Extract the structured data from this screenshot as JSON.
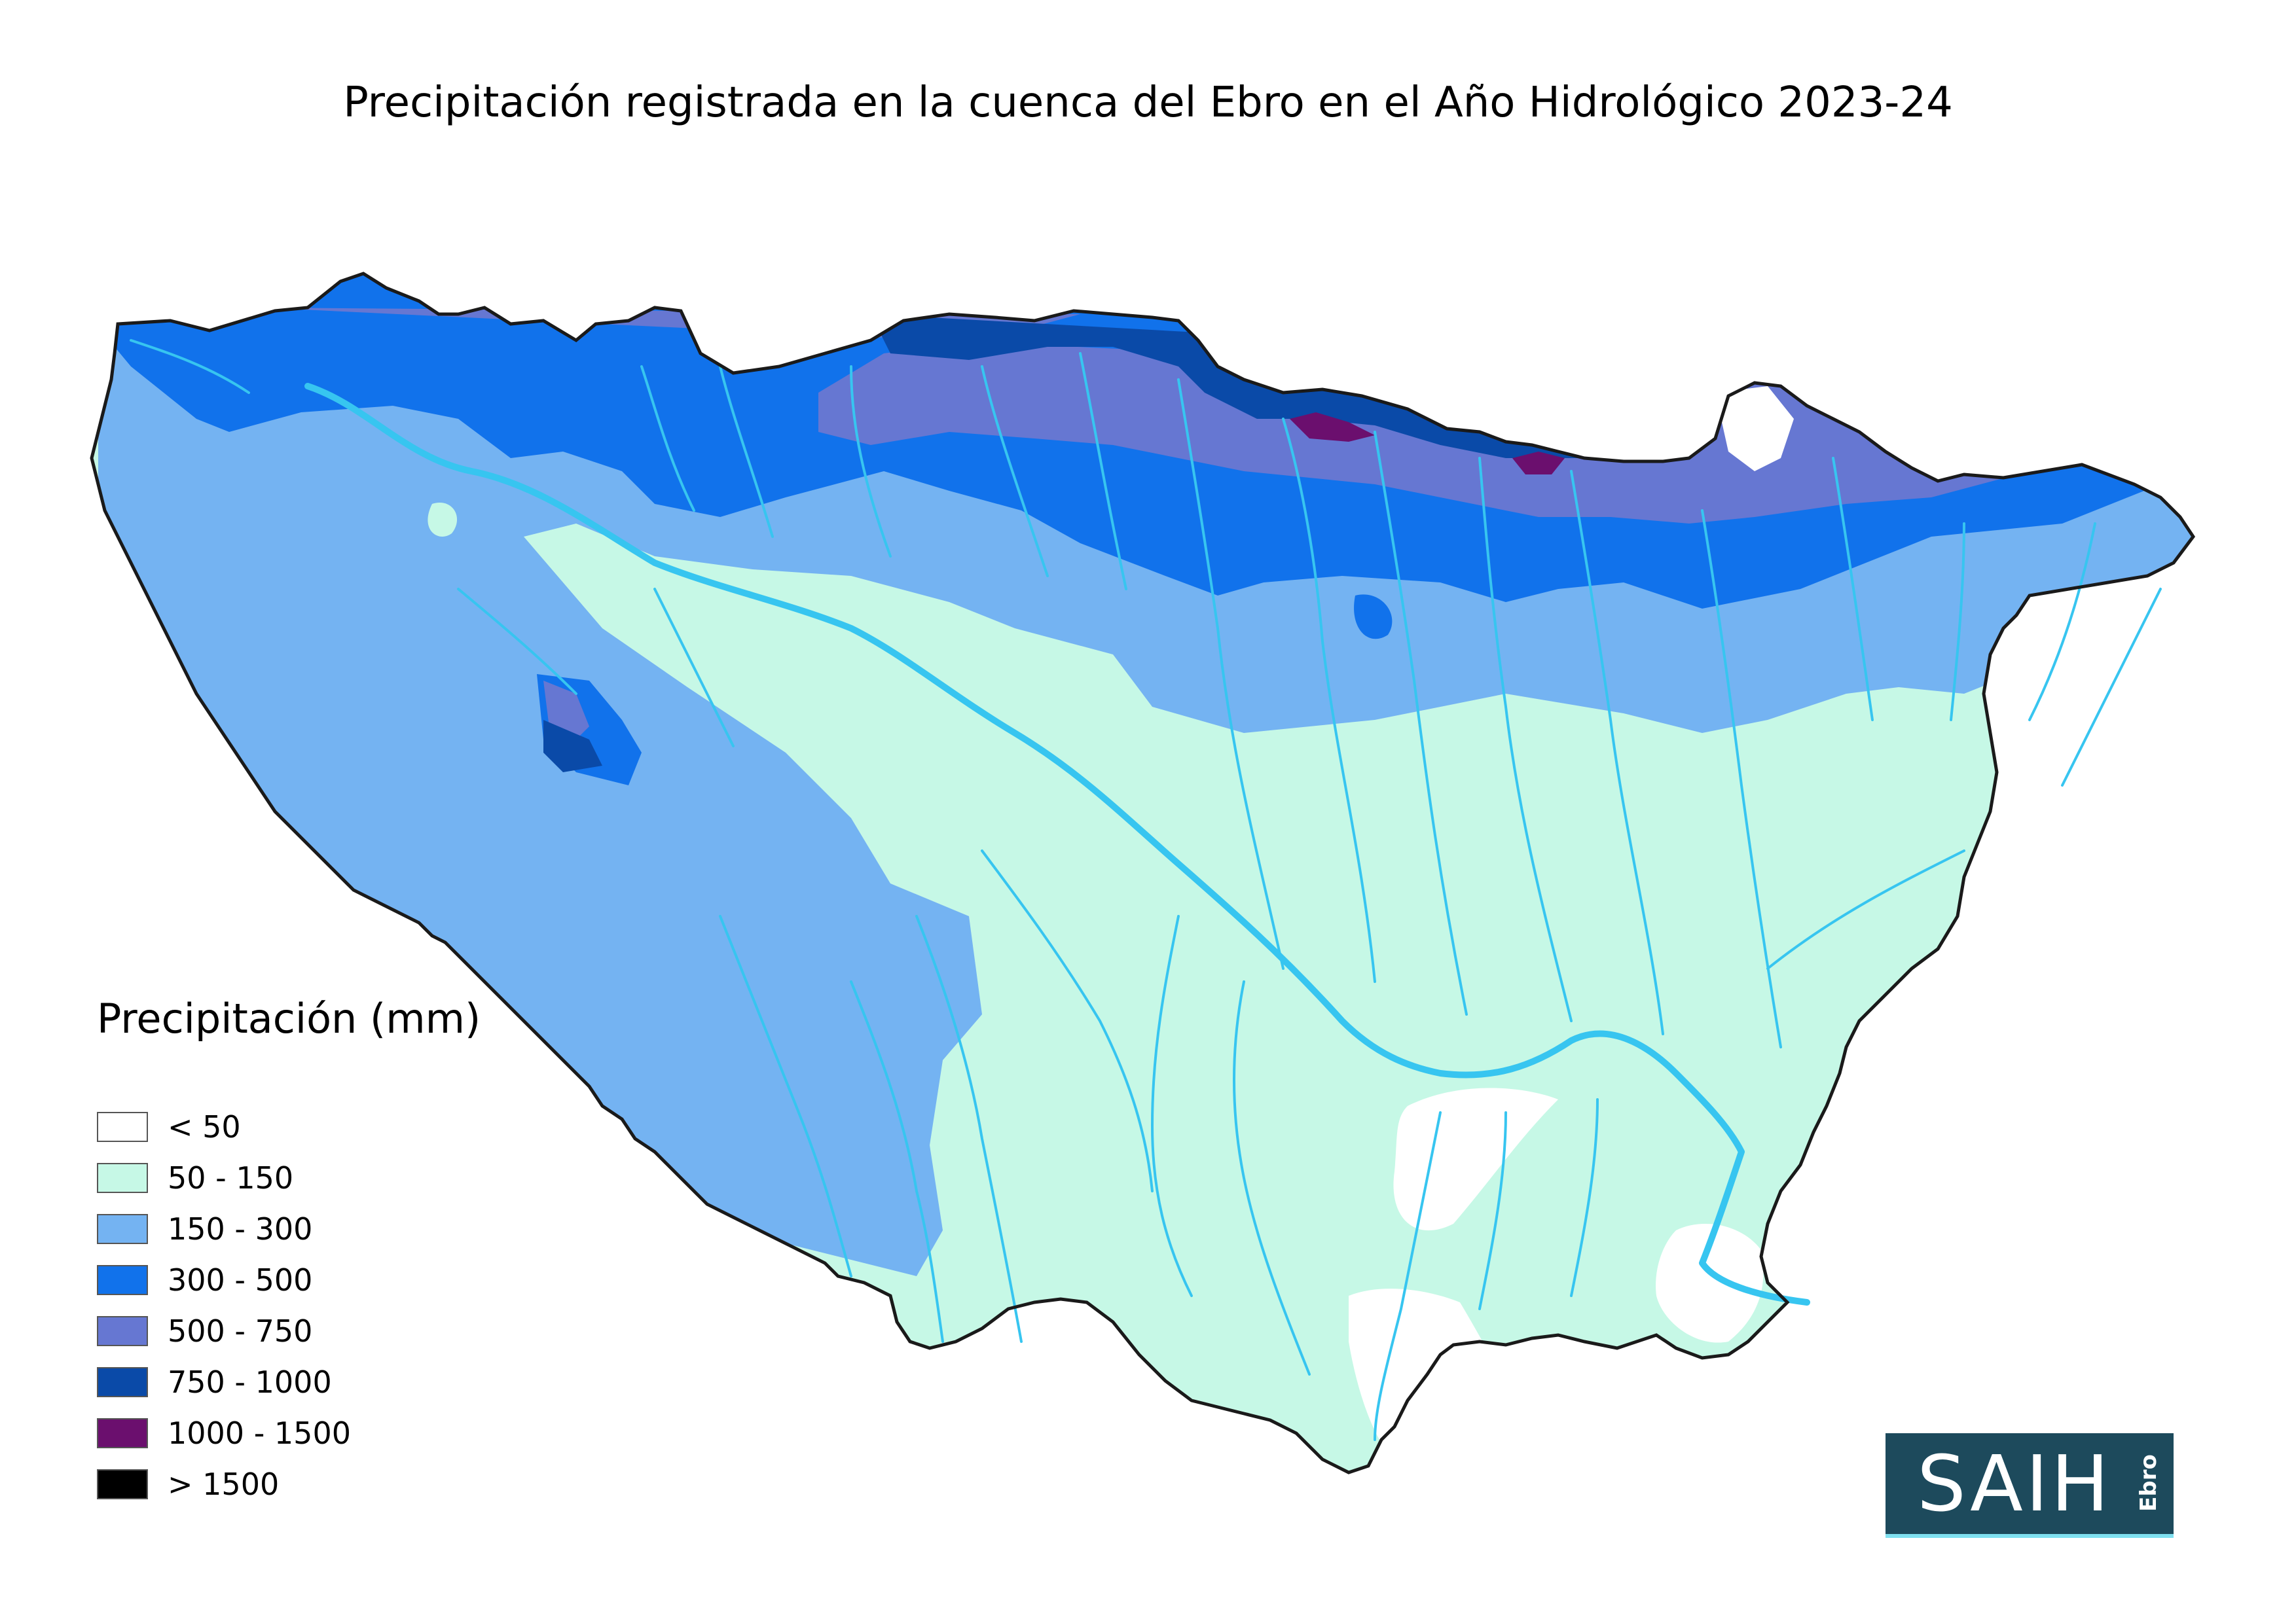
{
  "title": "Precipitación registrada en la cuenca del Ebro en el Año Hidrológico 2023-24",
  "legend": {
    "title": "Precipitación (mm)",
    "items": [
      {
        "label": "< 50",
        "color": "#ffffff"
      },
      {
        "label": "50 - 150",
        "color": "#c6f8e6"
      },
      {
        "label": "150 - 300",
        "color": "#74b3f2"
      },
      {
        "label": "300 - 500",
        "color": "#1172eb"
      },
      {
        "label": "500 - 750",
        "color": "#6677d2"
      },
      {
        "label": "750 - 1000",
        "color": "#0a4aa8"
      },
      {
        "label": "1000 - 1500",
        "color": "#6b0f6e"
      },
      {
        "label": "> 1500",
        "color": "#000000"
      }
    ]
  },
  "logo": {
    "main": "SAIH",
    "sub": "Ebro"
  },
  "map": {
    "region": "Cuenca del Ebro",
    "outline_color": "#1a1a1a",
    "river_color": "#37c5f0"
  }
}
